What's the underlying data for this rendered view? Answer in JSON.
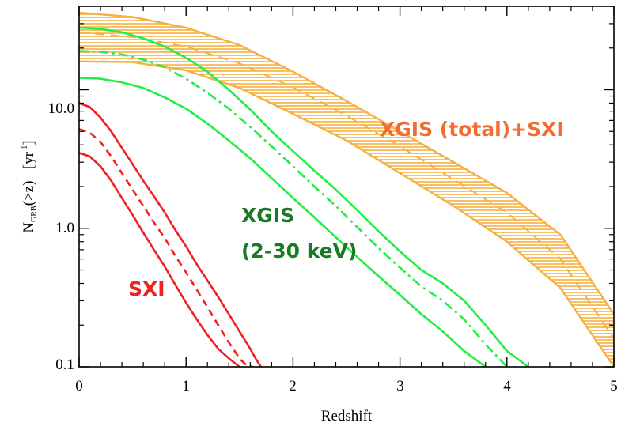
{
  "chart_data": {
    "type": "line",
    "xlabel": "Redshift",
    "ylabel": {
      "main": "N",
      "sub": "GRB",
      "rest": "(>z)",
      "unit_open": "[yr",
      "unit_sup": "-1",
      "unit_close": "]"
    },
    "xlim": [
      0,
      5
    ],
    "ylim": [
      0.1,
      40
    ],
    "yscale": "log",
    "x_ticks": [
      "0",
      "1",
      "2",
      "3",
      "4",
      "5"
    ],
    "x_tick_values": [
      0,
      1,
      2,
      3,
      4,
      5
    ],
    "y_ticks": [
      "0.1",
      "1.0",
      "10.0"
    ],
    "y_tick_values": [
      0.1,
      1,
      10
    ],
    "colors": {
      "sxi": "#ee2222",
      "xgis": "#22ee44",
      "band": "#f5b040",
      "band_fill": "#ffffff"
    },
    "series": [
      {
        "name": "SXI upper",
        "color": "sxi",
        "dash": "solid",
        "x": [
          0,
          0.1,
          0.2,
          0.3,
          0.4,
          0.5,
          0.6,
          0.7,
          0.8,
          0.9,
          1.0,
          1.1,
          1.2,
          1.3,
          1.4,
          1.5,
          1.6,
          1.65,
          1.7
        ],
        "y": [
          8.0,
          7.5,
          6.3,
          5.0,
          3.8,
          2.9,
          2.2,
          1.7,
          1.3,
          0.97,
          0.74,
          0.55,
          0.42,
          0.32,
          0.24,
          0.18,
          0.135,
          0.115,
          0.1
        ]
      },
      {
        "name": "SXI median",
        "color": "sxi",
        "dash": "dashed",
        "x": [
          0,
          0.1,
          0.2,
          0.3,
          0.4,
          0.5,
          0.6,
          0.7,
          0.8,
          0.9,
          1.0,
          1.1,
          1.2,
          1.3,
          1.4,
          1.5,
          1.55,
          1.62
        ],
        "y": [
          5.2,
          4.9,
          4.2,
          3.3,
          2.5,
          1.9,
          1.45,
          1.1,
          0.85,
          0.63,
          0.48,
          0.36,
          0.27,
          0.2,
          0.15,
          0.115,
          0.105,
          0.1
        ]
      },
      {
        "name": "SXI lower",
        "color": "sxi",
        "dash": "solid",
        "x": [
          0,
          0.1,
          0.2,
          0.3,
          0.4,
          0.5,
          0.6,
          0.7,
          0.8,
          0.9,
          1.0,
          1.1,
          1.2,
          1.3,
          1.4,
          1.5
        ],
        "y": [
          3.5,
          3.3,
          2.8,
          2.2,
          1.65,
          1.25,
          0.93,
          0.7,
          0.53,
          0.39,
          0.29,
          0.22,
          0.17,
          0.135,
          0.115,
          0.1
        ]
      },
      {
        "name": "XGIS upper",
        "color": "xgis",
        "dash": "solid",
        "x": [
          0,
          0.2,
          0.4,
          0.6,
          0.8,
          1.0,
          1.2,
          1.4,
          1.6,
          1.8,
          2.0,
          2.2,
          2.4,
          2.6,
          2.8,
          3.0,
          3.2,
          3.4,
          3.6,
          3.8,
          4.0,
          4.2
        ],
        "y": [
          28,
          27.5,
          26,
          23.5,
          20.5,
          17,
          13.5,
          10,
          7.2,
          5.0,
          3.6,
          2.6,
          1.9,
          1.35,
          0.95,
          0.68,
          0.5,
          0.4,
          0.3,
          0.2,
          0.13,
          0.1
        ]
      },
      {
        "name": "XGIS median",
        "color": "xgis",
        "dash": "dashdot",
        "x": [
          0,
          0.2,
          0.4,
          0.6,
          0.8,
          1.0,
          1.2,
          1.4,
          1.6,
          1.8,
          2.0,
          2.2,
          2.4,
          2.6,
          2.8,
          3.0,
          3.2,
          3.4,
          3.6,
          3.8,
          4.0
        ],
        "y": [
          19,
          18.8,
          18,
          16.5,
          14.5,
          12,
          9.5,
          7.3,
          5.4,
          3.9,
          2.8,
          2.0,
          1.45,
          1.02,
          0.72,
          0.52,
          0.38,
          0.3,
          0.22,
          0.145,
          0.1
        ]
      },
      {
        "name": "XGIS lower",
        "color": "xgis",
        "dash": "solid",
        "x": [
          0,
          0.2,
          0.4,
          0.6,
          0.8,
          1.0,
          1.2,
          1.4,
          1.6,
          1.8,
          2.0,
          2.2,
          2.4,
          2.6,
          2.8,
          3.0,
          3.2,
          3.4,
          3.6,
          3.8
        ],
        "y": [
          12.2,
          12.0,
          11.3,
          10.3,
          8.8,
          7.3,
          5.7,
          4.3,
          3.2,
          2.3,
          1.65,
          1.2,
          0.86,
          0.62,
          0.45,
          0.33,
          0.24,
          0.18,
          0.13,
          0.1
        ]
      }
    ],
    "band": {
      "name": "XGIS (total)+SXI",
      "x": [
        0,
        0.5,
        1.0,
        1.5,
        2.0,
        2.5,
        3.0,
        3.5,
        4.0,
        4.5,
        5.0
      ],
      "upper": [
        36,
        33.5,
        28,
        21,
        13.5,
        8.3,
        5.0,
        3.0,
        1.8,
        0.9,
        0.24
      ],
      "median": [
        26,
        24,
        20.5,
        15.5,
        10.4,
        6.5,
        3.9,
        2.25,
        1.3,
        0.6,
        0.16
      ],
      "lower": [
        16,
        15.8,
        13.8,
        10.3,
        6.7,
        4.3,
        2.5,
        1.45,
        0.8,
        0.37,
        0.1
      ]
    },
    "annotations": [
      {
        "text": "XGIS (total)+SXI",
        "color": "#f36b30"
      },
      {
        "text": "XGIS",
        "color": "#1a7a26"
      },
      {
        "text": "(2-30 keV)",
        "color": "#1a7a26"
      },
      {
        "text": "SXI",
        "color": "#ee2222"
      }
    ]
  }
}
